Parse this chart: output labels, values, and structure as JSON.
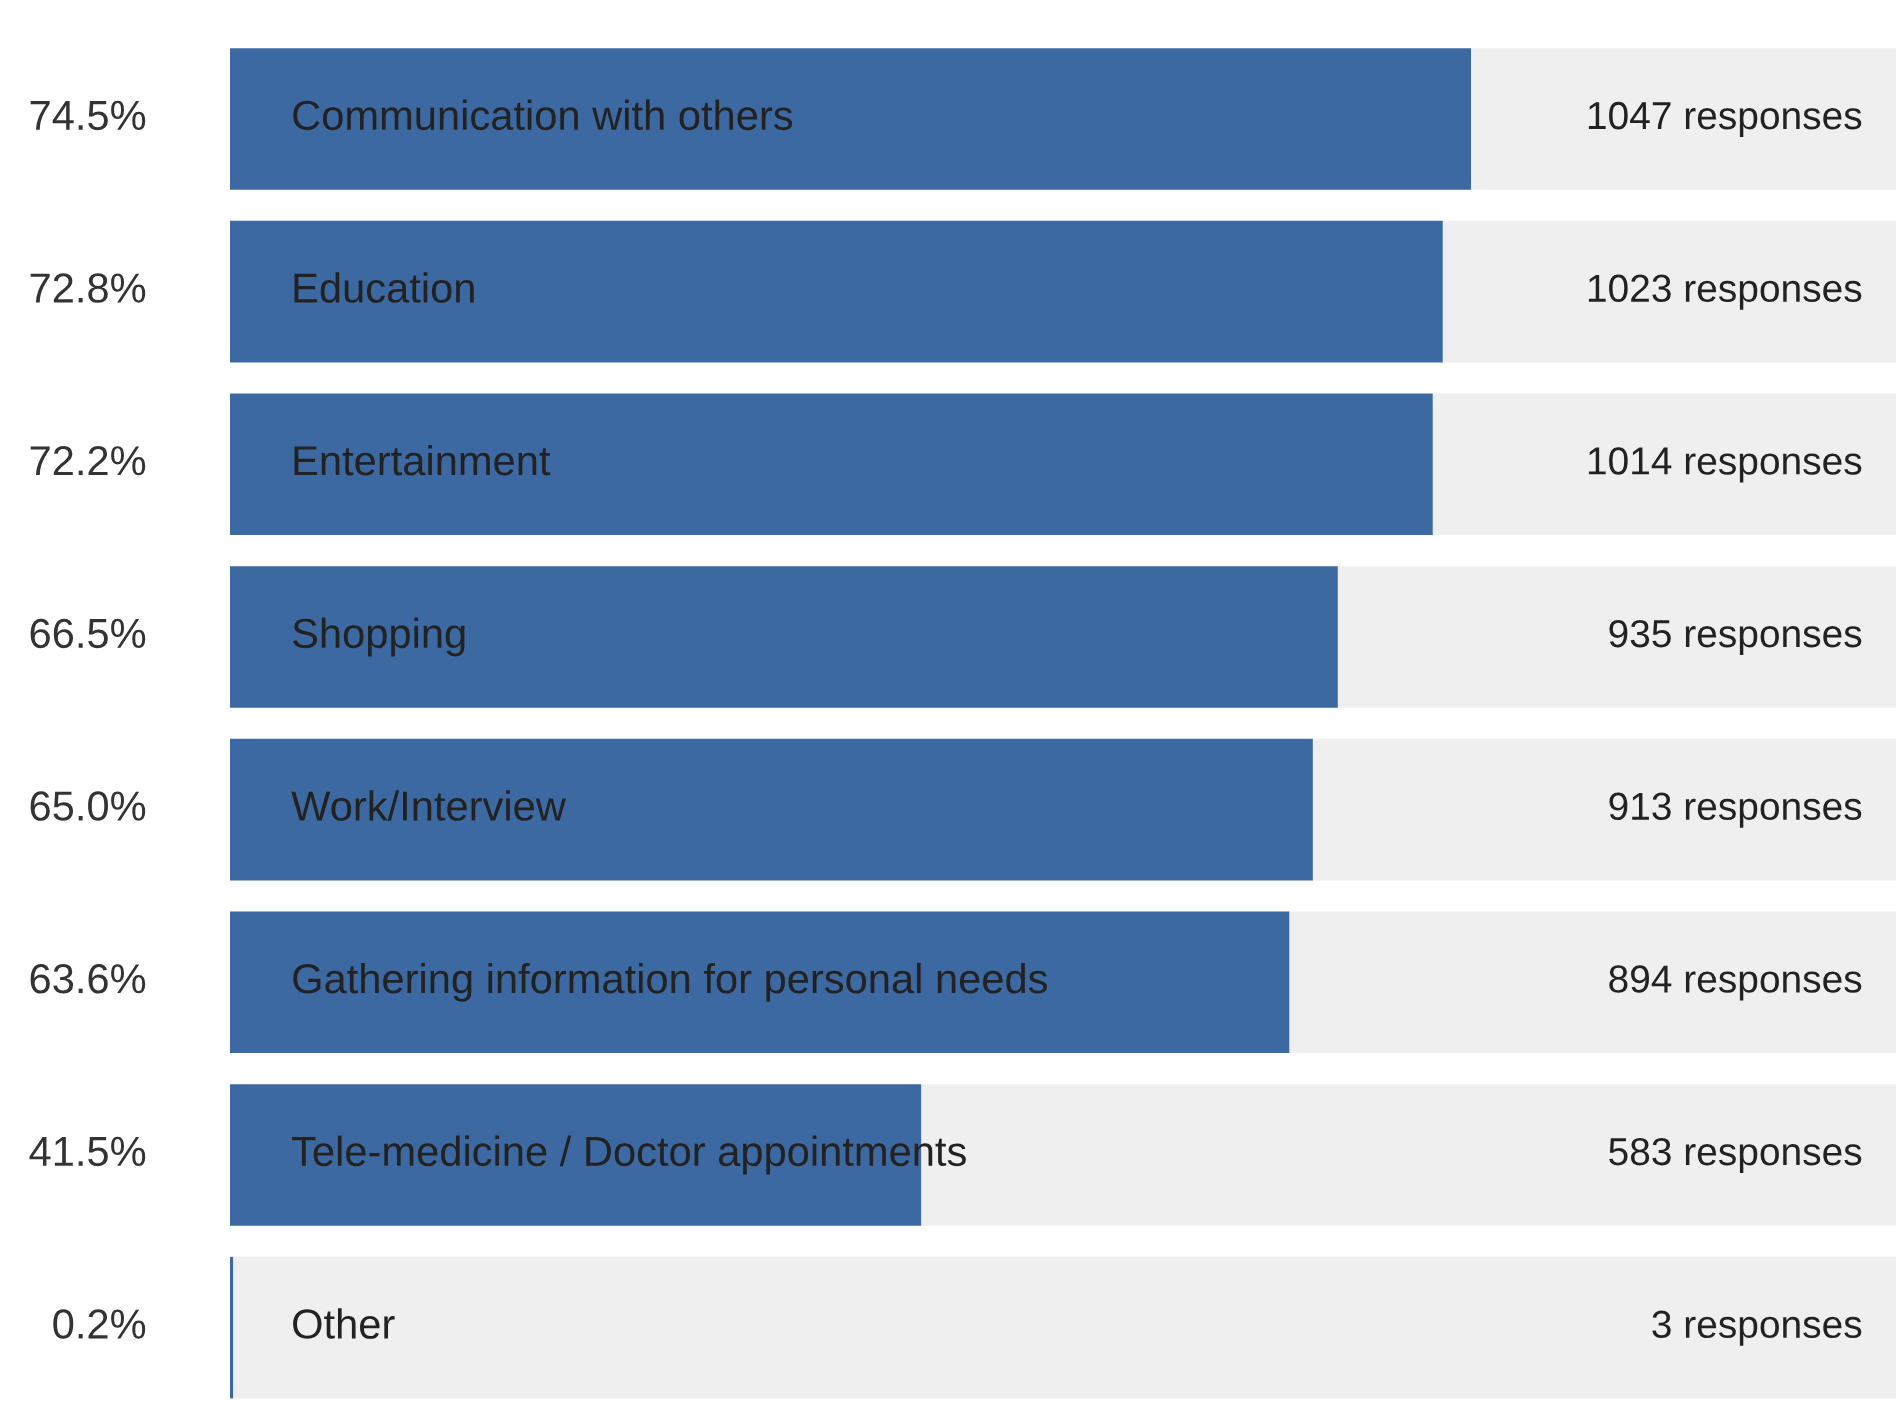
{
  "chart_data": {
    "type": "bar",
    "orientation": "horizontal",
    "stacked": true,
    "categories": [
      "Communication with others",
      "Education",
      "Entertainment",
      "Shopping",
      "Work/Interview",
      "Gathering information for personal needs",
      "Tele-medicine / Doctor appointments",
      "Other"
    ],
    "xlim": [
      0,
      100
    ],
    "series": [
      {
        "color": "#3d69a2",
        "values": [
          74.5,
          72.8,
          72.2,
          66.5,
          65.0,
          63.6,
          41.5,
          0.2
        ],
        "value_labels": [
          "74.5%",
          "72.8%",
          "72.2%",
          "66.5%",
          "65.0%",
          "63.6%",
          "41.5%",
          "0.2%"
        ]
      },
      {
        "color": "#efefef",
        "values": [
          25.5,
          27.2,
          27.8,
          33.5,
          35.0,
          36.4,
          58.5,
          99.8
        ]
      }
    ],
    "annotations": [
      {
        "text": "1047 responses",
        "y": "Communication with others"
      },
      {
        "text": "1023 responses",
        "y": "Education"
      },
      {
        "text": "1014 responses",
        "y": "Entertainment"
      },
      {
        "text": "935 responses",
        "y": "Shopping"
      },
      {
        "text": "913 responses",
        "y": "Work/Interview"
      },
      {
        "text": "894 responses",
        "y": "Gathering information for personal needs"
      },
      {
        "text": "583 responses",
        "y": "Tele-medicine / Doctor appointments"
      },
      {
        "text": "3 responses",
        "y": "Other"
      }
    ]
  }
}
